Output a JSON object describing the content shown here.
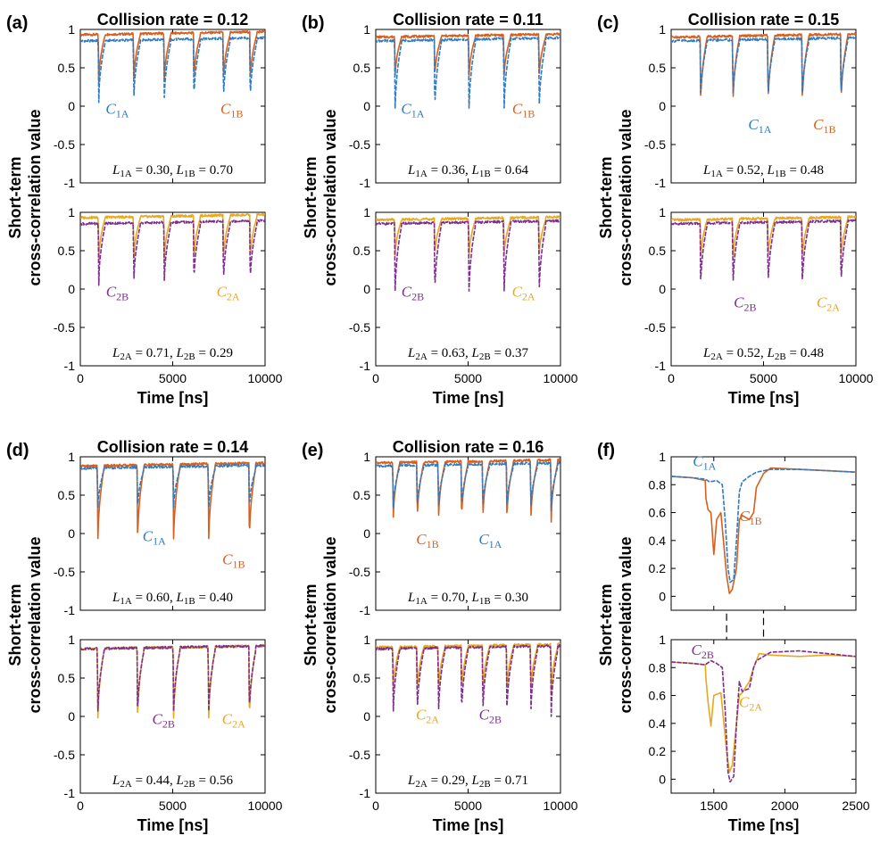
{
  "figure": {
    "y_label_line1": "Short-term",
    "y_label_line2": "cross-correlation value",
    "x_label": "Time [ns]",
    "colors": {
      "C1A": "#2f7bbf",
      "C1B": "#d95f1e",
      "C2A": "#e8a81f",
      "C2B": "#7e2d8e"
    }
  },
  "chart_data": [
    {
      "id": "a",
      "panel_label": "(a)",
      "type": "line",
      "title": "Collision rate = 0.12",
      "xlim": [
        0,
        10000
      ],
      "ylim": [
        -1,
        1
      ],
      "xticks": [
        "0",
        "5000",
        "10000"
      ],
      "yticks": [
        "1",
        "0.5",
        "0",
        "-0.5",
        "-1"
      ],
      "top": {
        "series": [
          {
            "name": "C1A",
            "base": 0.85,
            "dips": [
              1000,
              2900,
              4550,
              6150,
              7750,
              9200
            ],
            "min": 0.05
          },
          {
            "name": "C1B",
            "base": 0.93,
            "dips": [
              1000,
              2900,
              4550,
              6150,
              7750,
              9200
            ],
            "min": 0.3
          }
        ],
        "labels": [
          {
            "series": "C1A",
            "main": "C",
            "sub": "1A"
          },
          {
            "series": "C1B",
            "main": "C",
            "sub": "1B"
          }
        ],
        "annotation": {
          "l1_name": "1A",
          "l1": "0.30",
          "l2_name": "1B",
          "l2": "0.70"
        }
      },
      "bottom": {
        "series": [
          {
            "name": "C2B",
            "base": 0.85,
            "dips": [
              1000,
              2900,
              4550,
              6150,
              7750,
              9200
            ],
            "min": 0.05
          },
          {
            "name": "C2A",
            "base": 0.93,
            "dips": [
              1000,
              2900,
              4550,
              6150,
              7750,
              9200
            ],
            "min": 0.35
          }
        ],
        "labels": [
          {
            "series": "C2B",
            "main": "C",
            "sub": "2B"
          },
          {
            "series": "C2A",
            "main": "C",
            "sub": "2A"
          }
        ],
        "annotation": {
          "l1_name": "2A",
          "l1": "0.71",
          "l2_name": "2B",
          "l2": "0.29"
        }
      }
    },
    {
      "id": "b",
      "panel_label": "(b)",
      "type": "line",
      "title": "Collision rate = 0.11",
      "xlim": [
        0,
        10000
      ],
      "ylim": [
        -1,
        1
      ],
      "xticks": [
        "0",
        "5000",
        "10000"
      ],
      "yticks": [
        "1",
        "0.5",
        "0",
        "-0.5",
        "-1"
      ],
      "top": {
        "series": [
          {
            "name": "C1A",
            "base": 0.85,
            "dips": [
              1050,
              3200,
              5050,
              6950,
              8850
            ],
            "min": -0.1
          },
          {
            "name": "C1B",
            "base": 0.9,
            "dips": [
              1050,
              3200,
              5050,
              6950,
              8850
            ],
            "min": 0.35
          }
        ],
        "labels": [
          {
            "series": "C1A",
            "main": "C",
            "sub": "1A"
          },
          {
            "series": "C1B",
            "main": "C",
            "sub": "1B"
          }
        ],
        "annotation": {
          "l1_name": "1A",
          "l1": "0.36",
          "l2_name": "1B",
          "l2": "0.64"
        }
      },
      "bottom": {
        "series": [
          {
            "name": "C2B",
            "base": 0.85,
            "dips": [
              1050,
              3200,
              5050,
              6950,
              8850
            ],
            "min": -0.1
          },
          {
            "name": "C2A",
            "base": 0.9,
            "dips": [
              1050,
              3200,
              5050,
              6950,
              8850
            ],
            "min": 0.4
          }
        ],
        "labels": [
          {
            "series": "C2B",
            "main": "C",
            "sub": "2B"
          },
          {
            "series": "C2A",
            "main": "C",
            "sub": "2A"
          }
        ],
        "annotation": {
          "l1_name": "2A",
          "l1": "0.63",
          "l2_name": "2B",
          "l2": "0.37"
        }
      }
    },
    {
      "id": "c",
      "panel_label": "(c)",
      "type": "line",
      "title": "Collision rate = 0.15",
      "xlim": [
        0,
        10000
      ],
      "ylim": [
        -1,
        1
      ],
      "xticks": [
        "0",
        "5000",
        "10000"
      ],
      "yticks": [
        "1",
        "0.5",
        "0",
        "-0.5",
        "-1"
      ],
      "top": {
        "series": [
          {
            "name": "C1A",
            "base": 0.85,
            "dips": [
              1600,
              3350,
              5250,
              7100,
              9200
            ],
            "min": 0.05
          },
          {
            "name": "C1B",
            "base": 0.9,
            "dips": [
              1600,
              3350,
              5250,
              7100,
              9200
            ],
            "min": 0.0
          }
        ],
        "labels": [
          {
            "series": "C1A",
            "main": "C",
            "sub": "1A"
          },
          {
            "series": "C1B",
            "main": "C",
            "sub": "1B"
          }
        ],
        "annotation": {
          "l1_name": "1A",
          "l1": "0.52",
          "l2_name": "1B",
          "l2": "0.48"
        }
      },
      "bottom": {
        "series": [
          {
            "name": "C2B",
            "base": 0.85,
            "dips": [
              1600,
              3350,
              5250,
              7100,
              9200
            ],
            "min": 0.0
          },
          {
            "name": "C2A",
            "base": 0.9,
            "dips": [
              1600,
              3350,
              5250,
              7100,
              9200
            ],
            "min": 0.35
          }
        ],
        "labels": [
          {
            "series": "C2B",
            "main": "C",
            "sub": "2B"
          },
          {
            "series": "C2A",
            "main": "C",
            "sub": "2A"
          }
        ],
        "annotation": {
          "l1_name": "2A",
          "l1": "0.52",
          "l2_name": "2B",
          "l2": "0.48"
        }
      }
    },
    {
      "id": "d",
      "panel_label": "(d)",
      "type": "line",
      "title": "Collision rate = 0.14",
      "xlim": [
        0,
        10000
      ],
      "ylim": [
        -1,
        1
      ],
      "xticks": [
        "0",
        "5000",
        "10000"
      ],
      "yticks": [
        "1",
        "0.5",
        "0",
        "-0.5",
        "-1"
      ],
      "top": {
        "series": [
          {
            "name": "C1A",
            "base": 0.85,
            "dips": [
              950,
              3100,
              5050,
              6950,
              9150
            ],
            "min": 0.3
          },
          {
            "name": "C1B",
            "base": 0.88,
            "dips": [
              950,
              3100,
              5050,
              6950,
              9150
            ],
            "min": -0.15
          }
        ],
        "labels": [
          {
            "series": "C1A",
            "main": "C",
            "sub": "1A"
          },
          {
            "series": "C1B",
            "main": "C",
            "sub": "1B"
          }
        ],
        "annotation": {
          "l1_name": "1A",
          "l1": "0.60",
          "l2_name": "1B",
          "l2": "0.40"
        }
      },
      "bottom": {
        "series": [
          {
            "name": "C2B",
            "base": 0.88,
            "dips": [
              950,
              3100,
              5050,
              6950,
              9150
            ],
            "min": 0.0
          },
          {
            "name": "C2A",
            "base": 0.88,
            "dips": [
              950,
              3100,
              5050,
              6950,
              9150
            ],
            "min": -0.1
          }
        ],
        "labels": [
          {
            "series": "C2B",
            "main": "C",
            "sub": "2B"
          },
          {
            "series": "C2A",
            "main": "C",
            "sub": "2A"
          }
        ],
        "annotation": {
          "l1_name": "2A",
          "l1": "0.44",
          "l2_name": "2B",
          "l2": "0.56"
        }
      }
    },
    {
      "id": "e",
      "panel_label": "(e)",
      "type": "line",
      "title": "Collision rate = 0.16",
      "xlim": [
        0,
        10000
      ],
      "ylim": [
        -1,
        1
      ],
      "xticks": [
        "0",
        "5000",
        "10000"
      ],
      "yticks": [
        "1",
        "0.5",
        "0",
        "-0.5",
        "-1"
      ],
      "top": {
        "series": [
          {
            "name": "C1A",
            "base": 0.88,
            "dips": [
              950,
              2250,
              3400,
              4650,
              5800,
              7100,
              8400,
              9500
            ],
            "min": 0.3
          },
          {
            "name": "C1B",
            "base": 0.92,
            "dips": [
              950,
              2250,
              3400,
              4650,
              5800,
              7100,
              8400,
              9500
            ],
            "min": 0.15
          }
        ],
        "labels": [
          {
            "series": "C1B",
            "main": "C",
            "sub": "1B"
          },
          {
            "series": "C1A",
            "main": "C",
            "sub": "1A"
          }
        ],
        "annotation": {
          "l1_name": "1A",
          "l1": "0.70",
          "l2_name": "1B",
          "l2": "0.30"
        }
      },
      "bottom": {
        "series": [
          {
            "name": "C2B",
            "base": 0.88,
            "dips": [
              950,
              2250,
              3400,
              4650,
              5800,
              7100,
              8400,
              9500
            ],
            "min": 0.0
          },
          {
            "name": "C2A",
            "base": 0.9,
            "dips": [
              950,
              2250,
              3400,
              4650,
              5800,
              7100,
              8400,
              9500
            ],
            "min": 0.3
          }
        ],
        "labels": [
          {
            "series": "C2A",
            "main": "C",
            "sub": "2A"
          },
          {
            "series": "C2B",
            "main": "C",
            "sub": "2B"
          }
        ],
        "annotation": {
          "l1_name": "2A",
          "l1": "0.29",
          "l2_name": "2B",
          "l2": "0.71"
        }
      }
    },
    {
      "id": "f",
      "panel_label": "(f)",
      "type": "line",
      "title": "",
      "xlim": [
        1200,
        2500
      ],
      "ylim": [
        -0.1,
        1
      ],
      "xticks": [
        "1500",
        "2000",
        "2500"
      ],
      "yticks": [
        "1",
        "0.8",
        "0.6",
        "0.4",
        "0.2",
        "0"
      ],
      "highlight_window": [
        1590,
        1850
      ],
      "top": {
        "series": [
          {
            "name": "C1A",
            "points": [
              [
                1200,
                0.86
              ],
              [
                1350,
                0.85
              ],
              [
                1440,
                0.84
              ],
              [
                1470,
                0.82
              ],
              [
                1520,
                0.83
              ],
              [
                1560,
                0.8
              ],
              [
                1580,
                0.55
              ],
              [
                1600,
                0.2
              ],
              [
                1615,
                0.1
              ],
              [
                1640,
                0.12
              ],
              [
                1660,
                0.4
              ],
              [
                1680,
                0.75
              ],
              [
                1700,
                0.82
              ],
              [
                1750,
                0.86
              ],
              [
                1800,
                0.89
              ],
              [
                1900,
                0.91
              ],
              [
                2100,
                0.91
              ],
              [
                2300,
                0.9
              ],
              [
                2500,
                0.89
              ]
            ]
          },
          {
            "name": "C1B",
            "points": [
              [
                1200,
                0.86
              ],
              [
                1350,
                0.85
              ],
              [
                1440,
                0.83
              ],
              [
                1445,
                0.7
              ],
              [
                1460,
                0.62
              ],
              [
                1480,
                0.6
              ],
              [
                1490,
                0.45
              ],
              [
                1500,
                0.3
              ],
              [
                1520,
                0.55
              ],
              [
                1550,
                0.6
              ],
              [
                1590,
                0.15
              ],
              [
                1610,
                0.02
              ],
              [
                1630,
                0.05
              ],
              [
                1660,
                0.2
              ],
              [
                1680,
                0.55
              ],
              [
                1700,
                0.58
              ],
              [
                1750,
                0.55
              ],
              [
                1780,
                0.6
              ],
              [
                1800,
                0.78
              ],
              [
                1850,
                0.88
              ],
              [
                1900,
                0.92
              ],
              [
                2100,
                0.91
              ],
              [
                2300,
                0.9
              ],
              [
                2500,
                0.89
              ]
            ]
          }
        ],
        "labels": [
          {
            "series": "C1A",
            "main": "C",
            "sub": "1A"
          },
          {
            "series": "C1B",
            "main": "C",
            "sub": "1B"
          }
        ]
      },
      "bottom": {
        "series": [
          {
            "name": "C2B",
            "points": [
              [
                1200,
                0.84
              ],
              [
                1350,
                0.83
              ],
              [
                1440,
                0.82
              ],
              [
                1480,
                0.85
              ],
              [
                1520,
                0.83
              ],
              [
                1560,
                0.8
              ],
              [
                1580,
                0.5
              ],
              [
                1600,
                0.05
              ],
              [
                1615,
                -0.02
              ],
              [
                1640,
                0.02
              ],
              [
                1660,
                0.4
              ],
              [
                1680,
                0.7
              ],
              [
                1700,
                0.63
              ],
              [
                1750,
                0.65
              ],
              [
                1780,
                0.8
              ],
              [
                1800,
                0.85
              ],
              [
                1900,
                0.91
              ],
              [
                2100,
                0.92
              ],
              [
                2300,
                0.9
              ],
              [
                2500,
                0.88
              ]
            ]
          },
          {
            "name": "C2A",
            "points": [
              [
                1200,
                0.84
              ],
              [
                1350,
                0.83
              ],
              [
                1440,
                0.82
              ],
              [
                1445,
                0.72
              ],
              [
                1460,
                0.55
              ],
              [
                1480,
                0.38
              ],
              [
                1500,
                0.6
              ],
              [
                1550,
                0.62
              ],
              [
                1590,
                0.2
              ],
              [
                1610,
                0.05
              ],
              [
                1630,
                0.1
              ],
              [
                1660,
                0.4
              ],
              [
                1680,
                0.6
              ],
              [
                1700,
                0.62
              ],
              [
                1750,
                0.7
              ],
              [
                1780,
                0.8
              ],
              [
                1820,
                0.9
              ],
              [
                1900,
                0.89
              ],
              [
                2100,
                0.88
              ],
              [
                2300,
                0.89
              ],
              [
                2500,
                0.88
              ]
            ]
          }
        ],
        "labels": [
          {
            "series": "C2B",
            "main": "C",
            "sub": "2B"
          },
          {
            "series": "C2A",
            "main": "C",
            "sub": "2A"
          }
        ]
      }
    }
  ]
}
